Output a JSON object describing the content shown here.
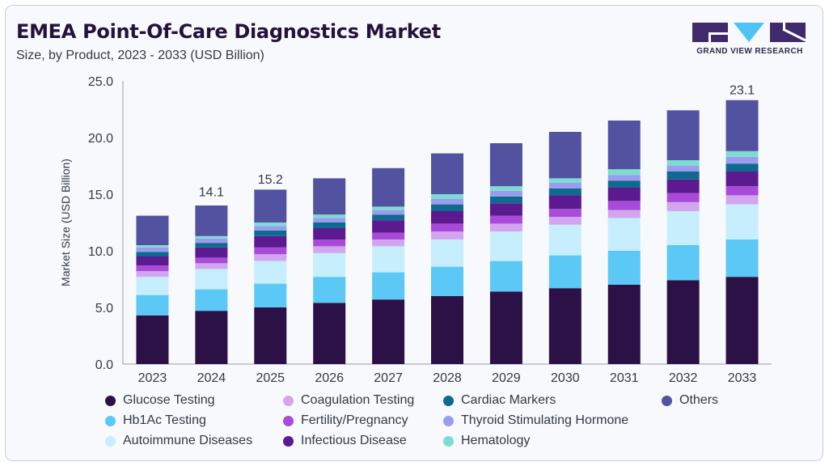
{
  "header": {
    "title": "EMEA Point-Of-Care Diagnostics Market",
    "subtitle": "Size, by Product, 2023 - 2033 (USD Billion)"
  },
  "logo": {
    "text": "GRAND VIEW RESEARCH",
    "color": "#3f2b6b",
    "accent": "#4fc3f7"
  },
  "chart_data": {
    "type": "bar",
    "stacked": true,
    "ylabel": "Market Size (USD Billion)",
    "xlabel": "",
    "ylim": [
      0,
      25
    ],
    "yticks": [
      "0.0",
      "5.0",
      "10.0",
      "15.0",
      "20.0",
      "25.0"
    ],
    "categories": [
      "2023",
      "2024",
      "2025",
      "2026",
      "2027",
      "2028",
      "2029",
      "2030",
      "2031",
      "2032",
      "2033"
    ],
    "grid": false,
    "legend_position": "bottom",
    "annotations": [
      {
        "category": "2024",
        "value": 14.1,
        "label": "14.1"
      },
      {
        "category": "2025",
        "value": 15.2,
        "label": "15.2"
      },
      {
        "category": "2033",
        "value": 23.1,
        "label": "23.1"
      }
    ],
    "series": [
      {
        "name": "Glucose Testing",
        "color": "#2b1145",
        "values": [
          4.3,
          4.7,
          5.0,
          5.4,
          5.7,
          6.0,
          6.4,
          6.7,
          7.0,
          7.4,
          7.7
        ]
      },
      {
        "name": "Hb1Ac Testing",
        "color": "#5bc8f5",
        "values": [
          1.8,
          1.9,
          2.1,
          2.3,
          2.4,
          2.6,
          2.7,
          2.9,
          3.0,
          3.1,
          3.3
        ]
      },
      {
        "name": "Autoimmune Diseases",
        "color": "#c6eefc",
        "values": [
          1.6,
          1.8,
          2.0,
          2.1,
          2.3,
          2.4,
          2.6,
          2.7,
          2.9,
          3.0,
          3.1
        ]
      },
      {
        "name": "Coagulation Testing",
        "color": "#d2a6ef",
        "values": [
          0.5,
          0.5,
          0.6,
          0.6,
          0.6,
          0.7,
          0.7,
          0.7,
          0.7,
          0.8,
          0.8
        ]
      },
      {
        "name": "Fertility/Pregnancy",
        "color": "#a94bd8",
        "values": [
          0.5,
          0.5,
          0.6,
          0.6,
          0.6,
          0.7,
          0.7,
          0.7,
          0.8,
          0.8,
          0.8
        ]
      },
      {
        "name": "Infectious Disease",
        "color": "#5b1a8f",
        "values": [
          0.8,
          0.9,
          1.0,
          1.0,
          1.1,
          1.1,
          1.1,
          1.2,
          1.2,
          1.2,
          1.3
        ]
      },
      {
        "name": "Cardiac Markers",
        "color": "#0e6a8e",
        "values": [
          0.4,
          0.4,
          0.5,
          0.5,
          0.5,
          0.6,
          0.6,
          0.6,
          0.6,
          0.7,
          0.7
        ]
      },
      {
        "name": "Thyroid Stimulating Hormone",
        "color": "#9b9cf0",
        "values": [
          0.4,
          0.4,
          0.4,
          0.4,
          0.4,
          0.5,
          0.5,
          0.5,
          0.5,
          0.5,
          0.6
        ]
      },
      {
        "name": "Hematology",
        "color": "#7ddcd0",
        "values": [
          0.2,
          0.2,
          0.3,
          0.3,
          0.3,
          0.4,
          0.4,
          0.4,
          0.5,
          0.5,
          0.5
        ]
      },
      {
        "name": "Others",
        "color": "#5352a0",
        "values": [
          2.6,
          2.7,
          2.9,
          3.2,
          3.4,
          3.6,
          3.8,
          4.1,
          4.3,
          4.4,
          4.5
        ]
      }
    ]
  }
}
